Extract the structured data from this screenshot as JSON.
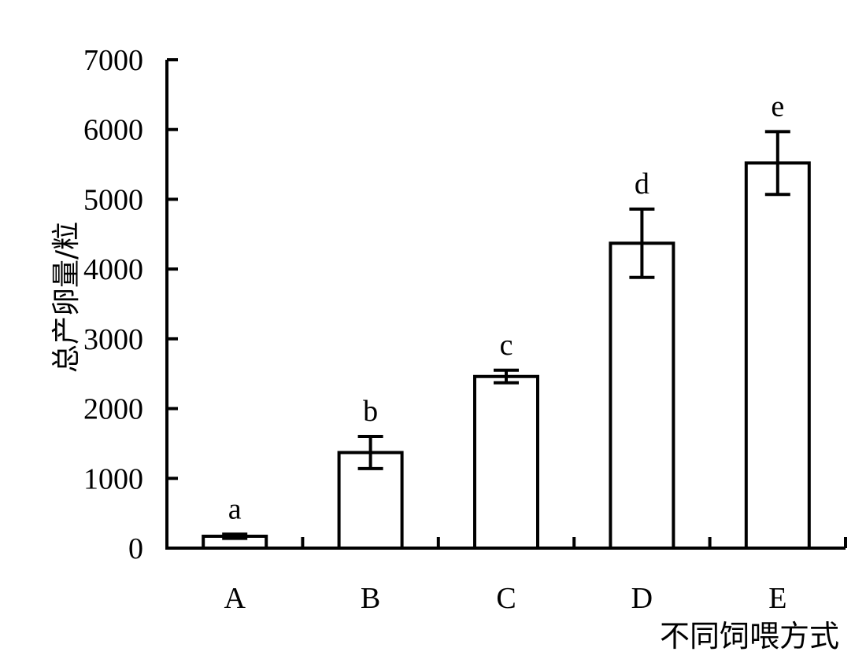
{
  "chart_data": {
    "type": "bar",
    "categories": [
      "A",
      "B",
      "C",
      "D",
      "E"
    ],
    "values": [
      170,
      1370,
      2460,
      4370,
      5520
    ],
    "errors": [
      30,
      230,
      90,
      490,
      450
    ],
    "significance_labels": [
      "a",
      "b",
      "c",
      "d",
      "e"
    ],
    "xlabel": "不同饲喂方式",
    "ylabel": "总产卵量/粒",
    "ylim": [
      0,
      7000
    ],
    "yticks": [
      0,
      1000,
      2000,
      3000,
      4000,
      5000,
      6000,
      7000
    ],
    "ytick_labels": [
      "0",
      "1000",
      "2000",
      "3000",
      "4000",
      "5000",
      "6000",
      "7000"
    ],
    "grid": false,
    "legend": "none",
    "bar_fill": "#ffffff",
    "bar_stroke": "#000000"
  }
}
